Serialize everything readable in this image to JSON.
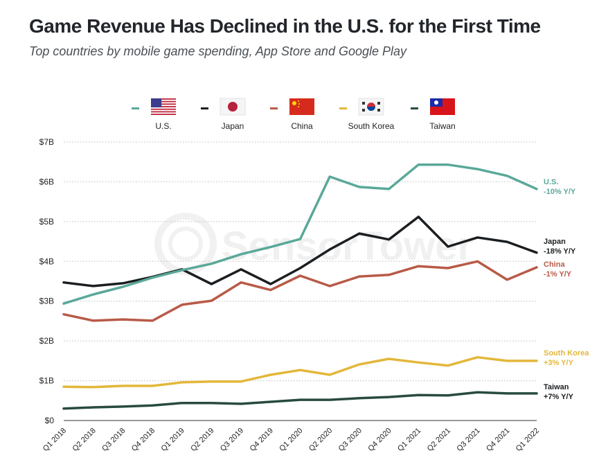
{
  "header": {
    "title": "Game Revenue Has Declined in the U.S. for the First Time",
    "subtitle": "Top countries by mobile game spending, App Store and Google Play"
  },
  "watermark": "SensorTower",
  "chart_data": {
    "type": "line",
    "title": "Game Revenue Has Declined in the U.S. for the First Time",
    "subtitle": "Top countries by mobile game spending, App Store and Google Play",
    "xlabel": "",
    "ylabel": "",
    "ylim": [
      0,
      7
    ],
    "y_ticks": [
      0,
      1,
      2,
      3,
      4,
      5,
      6,
      7
    ],
    "y_tick_labels": [
      "$0",
      "$1B",
      "$2B",
      "$3B",
      "$4B",
      "$5B",
      "$6B",
      "$7B"
    ],
    "grid": true,
    "legend_position": "top-center",
    "x": [
      "Q1 2018",
      "Q2 2018",
      "Q3 2018",
      "Q4 2018",
      "Q1 2019",
      "Q2 2019",
      "Q3 2019",
      "Q4 2019",
      "Q1 2020",
      "Q2 2020",
      "Q3 2020",
      "Q4 2020",
      "Q1 2021",
      "Q2 2021",
      "Q3 2021",
      "Q4 2021",
      "Q1 2022"
    ],
    "series": [
      {
        "name": "U.S.",
        "flag": "us-flag",
        "color": "#5aa899",
        "end_label": "U.S.",
        "end_change": "-10% Y/Y",
        "values": [
          2.94,
          3.17,
          3.36,
          3.59,
          3.78,
          3.94,
          4.18,
          4.36,
          4.56,
          6.13,
          5.87,
          5.82,
          6.43,
          6.43,
          6.32,
          6.15,
          5.82
        ]
      },
      {
        "name": "Japan",
        "flag": "japan-flag",
        "color": "#1b1e21",
        "end_label": "Japan",
        "end_change": "-18% Y/Y",
        "values": [
          3.47,
          3.38,
          3.45,
          3.61,
          3.8,
          3.43,
          3.8,
          3.43,
          3.83,
          4.3,
          4.7,
          4.55,
          5.12,
          4.37,
          4.6,
          4.49,
          4.22
        ]
      },
      {
        "name": "China",
        "flag": "china-flag",
        "color": "#b85a47",
        "end_label": "China",
        "end_change": "-1% Y/Y",
        "values": [
          2.67,
          2.51,
          2.54,
          2.51,
          2.91,
          3.01,
          3.47,
          3.28,
          3.64,
          3.38,
          3.62,
          3.66,
          3.88,
          3.83,
          4.0,
          3.54,
          3.85
        ]
      },
      {
        "name": "South Korea",
        "flag": "south-korea-flag",
        "color": "#e3b73a",
        "end_label": "South Korea",
        "end_change": "+3% Y/Y",
        "values": [
          0.85,
          0.84,
          0.87,
          0.87,
          0.96,
          0.98,
          0.98,
          1.15,
          1.27,
          1.15,
          1.41,
          1.55,
          1.46,
          1.38,
          1.59,
          1.5,
          1.5
        ]
      },
      {
        "name": "Taiwan",
        "flag": "taiwan-flag",
        "color": "#284b3e",
        "end_label": "Taiwan",
        "end_change": "+7% Y/Y",
        "values": [
          0.3,
          0.33,
          0.35,
          0.38,
          0.44,
          0.44,
          0.42,
          0.47,
          0.52,
          0.52,
          0.56,
          0.59,
          0.64,
          0.63,
          0.71,
          0.68,
          0.68
        ]
      }
    ]
  }
}
